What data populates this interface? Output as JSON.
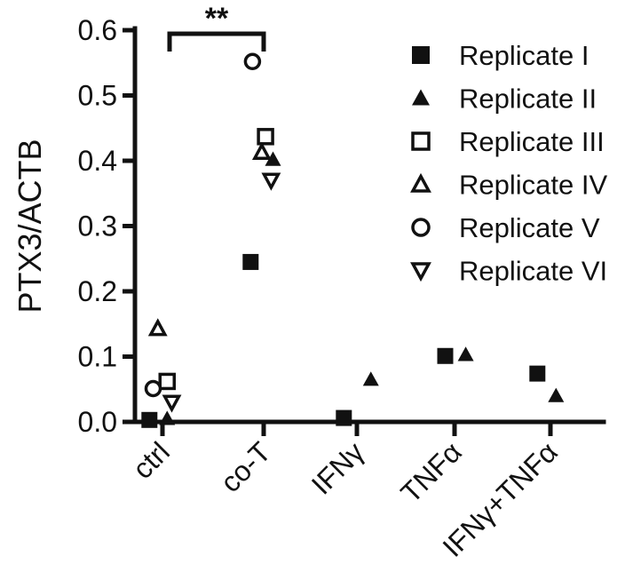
{
  "chart_data": {
    "type": "scatter",
    "ylabel": "PTX3/ACTB",
    "xlabel": "",
    "title": "",
    "ylim": [
      0,
      0.6
    ],
    "yticks": [
      "0.0",
      "0.1",
      "0.2",
      "0.3",
      "0.4",
      "0.5",
      "0.6"
    ],
    "categories": [
      "ctrl",
      "co-T",
      "IFNγ",
      "TNFα",
      "IFNγ+TNFα"
    ],
    "grid": false,
    "legend_position": "top-right",
    "series": [
      {
        "name": "Replicate I",
        "marker": "square-filled",
        "points": [
          {
            "category": "ctrl",
            "offset": -0.14,
            "y": 0.003
          },
          {
            "category": "co-T",
            "offset": -0.14,
            "y": 0.245
          },
          {
            "category": "IFNγ",
            "offset": -0.14,
            "y": 0.006
          },
          {
            "category": "TNFα",
            "offset": -0.1,
            "y": 0.101
          },
          {
            "category": "IFNγ+TNFα",
            "offset": -0.14,
            "y": 0.074
          }
        ]
      },
      {
        "name": "Replicate II",
        "marker": "triangle-up-filled",
        "points": [
          {
            "category": "ctrl",
            "offset": 0.05,
            "y": 0.005
          },
          {
            "category": "co-T",
            "offset": 0.1,
            "y": 0.402
          },
          {
            "category": "IFNγ",
            "offset": 0.15,
            "y": 0.065
          },
          {
            "category": "TNFα",
            "offset": 0.12,
            "y": 0.103
          },
          {
            "category": "IFNγ+TNFα",
            "offset": 0.06,
            "y": 0.04
          }
        ]
      },
      {
        "name": "Replicate III",
        "marker": "square-open",
        "points": [
          {
            "category": "ctrl",
            "offset": 0.05,
            "y": 0.062
          },
          {
            "category": "co-T",
            "offset": 0.02,
            "y": 0.437
          }
        ]
      },
      {
        "name": "Replicate IV",
        "marker": "triangle-up-open",
        "points": [
          {
            "category": "ctrl",
            "offset": -0.05,
            "y": 0.143
          },
          {
            "category": "co-T",
            "offset": -0.02,
            "y": 0.413
          }
        ]
      },
      {
        "name": "Replicate V",
        "marker": "circle-open",
        "points": [
          {
            "category": "ctrl",
            "offset": -0.1,
            "y": 0.051
          },
          {
            "category": "co-T",
            "offset": -0.12,
            "y": 0.552
          }
        ]
      },
      {
        "name": "Replicate VI",
        "marker": "triangle-down-open",
        "points": [
          {
            "category": "ctrl",
            "offset": 0.1,
            "y": 0.03
          },
          {
            "category": "co-T",
            "offset": 0.08,
            "y": 0.37
          }
        ]
      }
    ],
    "annotations": [
      {
        "type": "significance-bracket",
        "from": "ctrl",
        "to": "co-T",
        "label": "**"
      }
    ]
  }
}
